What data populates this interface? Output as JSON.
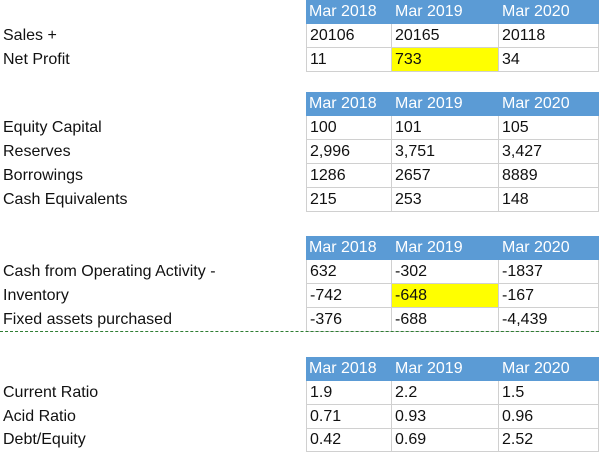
{
  "sections": [
    {
      "header": [
        "Mar 2018",
        "Mar 2019",
        "Mar 2020"
      ],
      "rows": [
        {
          "label": "Sales +",
          "values": [
            "20106",
            "20165",
            "20118"
          ]
        },
        {
          "label": "Net Profit",
          "values": [
            "11",
            "733",
            "34"
          ]
        }
      ]
    },
    {
      "header": [
        "Mar 2018",
        "Mar 2019",
        "Mar 2020"
      ],
      "rows": [
        {
          "label": "Equity Capital",
          "values": [
            "100",
            "101",
            "105"
          ]
        },
        {
          "label": "Reserves",
          "values": [
            "2,996",
            "3,751",
            "3,427"
          ]
        },
        {
          "label": "Borrowings",
          "values": [
            "1286",
            "2657",
            "8889"
          ]
        },
        {
          "label": "Cash Equivalents",
          "values": [
            "215",
            "253",
            "148"
          ]
        }
      ]
    },
    {
      "header": [
        "Mar 2018",
        "Mar 2019",
        "Mar 2020"
      ],
      "rows": [
        {
          "label": "Cash from Operating Activity -",
          "values": [
            "632",
            "-302",
            "-1837"
          ]
        },
        {
          "label": "Inventory",
          "values": [
            "-742",
            "-648",
            "-167"
          ]
        },
        {
          "label": "Fixed assets purchased",
          "values": [
            "-376",
            "-688",
            "-4,439"
          ]
        }
      ]
    },
    {
      "header": [
        "Mar 2018",
        "Mar 2019",
        "Mar 2020"
      ],
      "rows": [
        {
          "label": "Current Ratio",
          "values": [
            "1.9",
            "2.2",
            "1.5"
          ]
        },
        {
          "label": "Acid Ratio",
          "values": [
            "0.71",
            "0.93",
            "0.96"
          ]
        },
        {
          "label": "Debt/Equity",
          "values": [
            "0.42",
            "0.69",
            "2.52"
          ]
        }
      ]
    }
  ],
  "colors": {
    "header_fill": "#5b9bd5",
    "header_text": "#ffffff",
    "highlight": "#ffff00",
    "separator": "#2e7d32"
  }
}
